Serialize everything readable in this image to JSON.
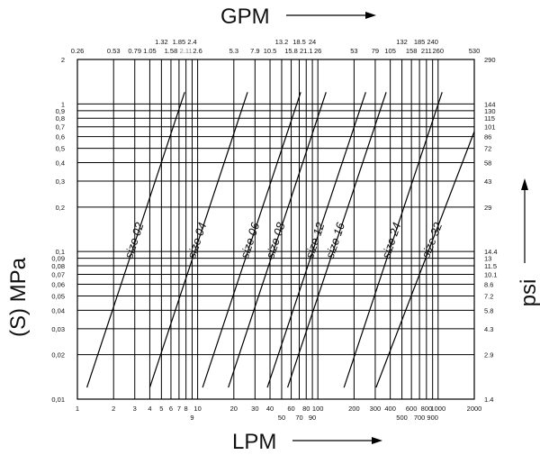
{
  "chart_data": {
    "type": "line",
    "title": "",
    "x_axis": {
      "label": "LPM",
      "scale": "log",
      "range": [
        1,
        2000
      ],
      "ticks_main": [
        "1",
        "2",
        "3",
        "4",
        "5",
        "6",
        "7",
        "8",
        "10",
        "20",
        "30",
        "40",
        "60",
        "80",
        "100",
        "200",
        "300",
        "400",
        "600",
        "800",
        "1000",
        "2000"
      ],
      "ticks_offset": [
        "9",
        "50",
        "70",
        "90",
        "500",
        "700",
        "900"
      ]
    },
    "x2_axis": {
      "label": "GPM",
      "scale": "log",
      "ticks_row1": [
        "0.26",
        "0.53",
        "0.79",
        "1.05",
        "1.58",
        "2.11",
        "2.6",
        "5.3",
        "7.9",
        "10.5",
        "15.8",
        "21.1",
        "26",
        "53",
        "79",
        "105",
        "158",
        "211",
        "260",
        "530"
      ],
      "ticks_row2": [
        "1.32",
        "1.85",
        "2.4",
        "13.2",
        "18.5",
        "24",
        "132",
        "185",
        "240"
      ]
    },
    "y_axis": {
      "label": "(S) MPa",
      "scale": "log",
      "range": [
        0.01,
        2
      ],
      "ticks": [
        "0,01",
        "0,02",
        "0,03",
        "0,04",
        "0,05",
        "0,06",
        "0,07",
        "0,08",
        "0,09",
        "0,1",
        "0,2",
        "0,3",
        "0,4",
        "0,5",
        "0,6",
        "0,7",
        "0,8",
        "0,9",
        "1",
        "2"
      ]
    },
    "y2_axis": {
      "label": "psi",
      "ticks": [
        "1.4",
        "2.9",
        "4.3",
        "5.8",
        "7.2",
        "8.6",
        "10.1",
        "11.5",
        "13",
        "14.4",
        "29",
        "43",
        "58",
        "72",
        "86",
        "101",
        "115",
        "130",
        "144",
        "290"
      ]
    },
    "grid": true,
    "series": [
      {
        "name": "size 02",
        "x": [
          1.2,
          7.8
        ],
        "y": [
          0.012,
          1.2
        ]
      },
      {
        "name": "size 04",
        "x": [
          4,
          26
        ],
        "y": [
          0.012,
          1.2
        ]
      },
      {
        "name": "size 06",
        "x": [
          11,
          72
        ],
        "y": [
          0.012,
          1.2
        ]
      },
      {
        "name": "size 08",
        "x": [
          18,
          117
        ],
        "y": [
          0.012,
          1.2
        ]
      },
      {
        "name": "size 12",
        "x": [
          38,
          250
        ],
        "y": [
          0.012,
          1.2
        ]
      },
      {
        "name": "size 16",
        "x": [
          56,
          370
        ],
        "y": [
          0.012,
          1.2
        ]
      },
      {
        "name": "size 24",
        "x": [
          165,
          1080
        ],
        "y": [
          0.012,
          1.2
        ]
      },
      {
        "name": "size 32",
        "x": [
          305,
          2000
        ],
        "y": [
          0.012,
          0.65
        ]
      }
    ]
  }
}
